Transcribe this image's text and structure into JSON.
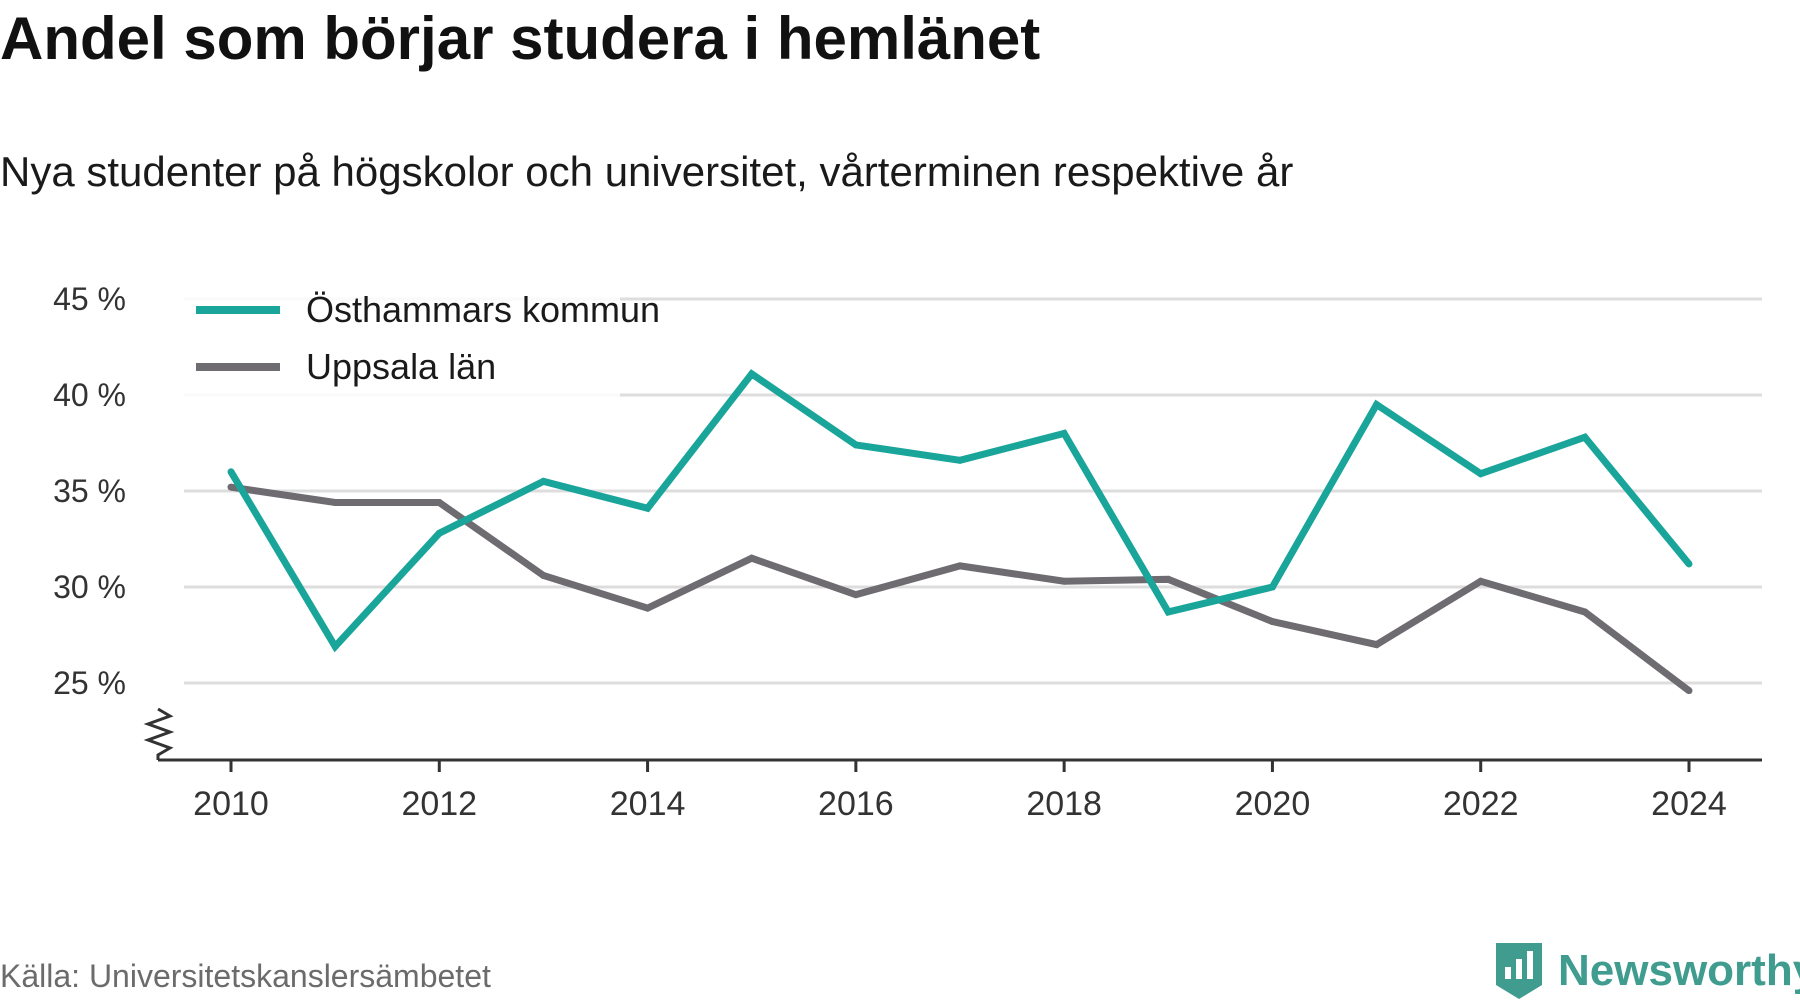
{
  "header": {
    "title": "Andel som börjar studera i hemlänet",
    "subtitle": "Nya studenter på högskolor och universitet, vårterminen respektive år"
  },
  "footer": {
    "source": "Källa: Universitetskanslersämbetet",
    "brand": "Newsworthy",
    "brand_icon": "bar-chart-badge-icon",
    "brand_color": "#3f9c8e"
  },
  "chart_data": {
    "type": "line",
    "title": "Andel som börjar studera i hemlänet",
    "subtitle": "Nya studenter på högskolor och universitet, vårterminen respektive år",
    "xlabel": "",
    "ylabel": "",
    "x": [
      2010,
      2011,
      2012,
      2013,
      2014,
      2015,
      2016,
      2017,
      2018,
      2019,
      2020,
      2021,
      2022,
      2023,
      2024
    ],
    "x_ticks": [
      2010,
      2012,
      2014,
      2016,
      2018,
      2020,
      2022,
      2024
    ],
    "y_ticks": [
      25,
      30,
      35,
      40,
      45
    ],
    "y_tick_labels": [
      "25 %",
      "30 %",
      "35 %",
      "40 %",
      "45 %"
    ],
    "ylim": [
      21,
      45
    ],
    "y_axis_break": true,
    "grid": true,
    "legend_position": "top-left",
    "series": [
      {
        "name": "Östhammars kommun",
        "color": "#1aa59a",
        "values": [
          36.0,
          26.9,
          32.8,
          35.5,
          34.1,
          41.1,
          37.4,
          36.6,
          38.0,
          28.7,
          30.0,
          39.5,
          35.9,
          37.8,
          31.2
        ]
      },
      {
        "name": "Uppsala län",
        "color": "#6e6c71",
        "values": [
          35.2,
          34.4,
          34.4,
          30.6,
          28.9,
          31.5,
          29.6,
          31.1,
          30.3,
          30.4,
          28.2,
          27.0,
          30.3,
          28.7,
          24.6
        ]
      }
    ]
  }
}
